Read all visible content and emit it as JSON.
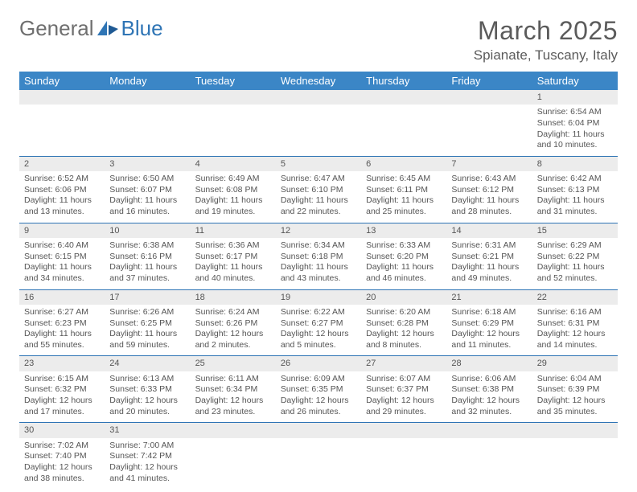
{
  "brand": {
    "part1": "General",
    "part2": "Blue",
    "logo_color_grey": "#6f6f6f",
    "logo_color_blue": "#2f75b5"
  },
  "title": {
    "month": "March 2025",
    "location": "Spianate, Tuscany, Italy"
  },
  "colors": {
    "header_bg": "#3b86c6",
    "header_fg": "#ffffff",
    "daynum_bg": "#ececec",
    "border": "#2e74b5",
    "text": "#555555"
  },
  "typography": {
    "month_fontsize": 32,
    "location_fontsize": 17,
    "header_fontsize": 13,
    "cell_fontsize": 10.5,
    "daynum_fontsize": 11
  },
  "calendar": {
    "type": "table",
    "columns": [
      "Sunday",
      "Monday",
      "Tuesday",
      "Wednesday",
      "Thursday",
      "Friday",
      "Saturday"
    ],
    "weeks": [
      [
        null,
        null,
        null,
        null,
        null,
        null,
        {
          "d": "1",
          "sunrise": "6:54 AM",
          "sunset": "6:04 PM",
          "daylight": "11 hours and 10 minutes."
        }
      ],
      [
        {
          "d": "2",
          "sunrise": "6:52 AM",
          "sunset": "6:06 PM",
          "daylight": "11 hours and 13 minutes."
        },
        {
          "d": "3",
          "sunrise": "6:50 AM",
          "sunset": "6:07 PM",
          "daylight": "11 hours and 16 minutes."
        },
        {
          "d": "4",
          "sunrise": "6:49 AM",
          "sunset": "6:08 PM",
          "daylight": "11 hours and 19 minutes."
        },
        {
          "d": "5",
          "sunrise": "6:47 AM",
          "sunset": "6:10 PM",
          "daylight": "11 hours and 22 minutes."
        },
        {
          "d": "6",
          "sunrise": "6:45 AM",
          "sunset": "6:11 PM",
          "daylight": "11 hours and 25 minutes."
        },
        {
          "d": "7",
          "sunrise": "6:43 AM",
          "sunset": "6:12 PM",
          "daylight": "11 hours and 28 minutes."
        },
        {
          "d": "8",
          "sunrise": "6:42 AM",
          "sunset": "6:13 PM",
          "daylight": "11 hours and 31 minutes."
        }
      ],
      [
        {
          "d": "9",
          "sunrise": "6:40 AM",
          "sunset": "6:15 PM",
          "daylight": "11 hours and 34 minutes."
        },
        {
          "d": "10",
          "sunrise": "6:38 AM",
          "sunset": "6:16 PM",
          "daylight": "11 hours and 37 minutes."
        },
        {
          "d": "11",
          "sunrise": "6:36 AM",
          "sunset": "6:17 PM",
          "daylight": "11 hours and 40 minutes."
        },
        {
          "d": "12",
          "sunrise": "6:34 AM",
          "sunset": "6:18 PM",
          "daylight": "11 hours and 43 minutes."
        },
        {
          "d": "13",
          "sunrise": "6:33 AM",
          "sunset": "6:20 PM",
          "daylight": "11 hours and 46 minutes."
        },
        {
          "d": "14",
          "sunrise": "6:31 AM",
          "sunset": "6:21 PM",
          "daylight": "11 hours and 49 minutes."
        },
        {
          "d": "15",
          "sunrise": "6:29 AM",
          "sunset": "6:22 PM",
          "daylight": "11 hours and 52 minutes."
        }
      ],
      [
        {
          "d": "16",
          "sunrise": "6:27 AM",
          "sunset": "6:23 PM",
          "daylight": "11 hours and 55 minutes."
        },
        {
          "d": "17",
          "sunrise": "6:26 AM",
          "sunset": "6:25 PM",
          "daylight": "11 hours and 59 minutes."
        },
        {
          "d": "18",
          "sunrise": "6:24 AM",
          "sunset": "6:26 PM",
          "daylight": "12 hours and 2 minutes."
        },
        {
          "d": "19",
          "sunrise": "6:22 AM",
          "sunset": "6:27 PM",
          "daylight": "12 hours and 5 minutes."
        },
        {
          "d": "20",
          "sunrise": "6:20 AM",
          "sunset": "6:28 PM",
          "daylight": "12 hours and 8 minutes."
        },
        {
          "d": "21",
          "sunrise": "6:18 AM",
          "sunset": "6:29 PM",
          "daylight": "12 hours and 11 minutes."
        },
        {
          "d": "22",
          "sunrise": "6:16 AM",
          "sunset": "6:31 PM",
          "daylight": "12 hours and 14 minutes."
        }
      ],
      [
        {
          "d": "23",
          "sunrise": "6:15 AM",
          "sunset": "6:32 PM",
          "daylight": "12 hours and 17 minutes."
        },
        {
          "d": "24",
          "sunrise": "6:13 AM",
          "sunset": "6:33 PM",
          "daylight": "12 hours and 20 minutes."
        },
        {
          "d": "25",
          "sunrise": "6:11 AM",
          "sunset": "6:34 PM",
          "daylight": "12 hours and 23 minutes."
        },
        {
          "d": "26",
          "sunrise": "6:09 AM",
          "sunset": "6:35 PM",
          "daylight": "12 hours and 26 minutes."
        },
        {
          "d": "27",
          "sunrise": "6:07 AM",
          "sunset": "6:37 PM",
          "daylight": "12 hours and 29 minutes."
        },
        {
          "d": "28",
          "sunrise": "6:06 AM",
          "sunset": "6:38 PM",
          "daylight": "12 hours and 32 minutes."
        },
        {
          "d": "29",
          "sunrise": "6:04 AM",
          "sunset": "6:39 PM",
          "daylight": "12 hours and 35 minutes."
        }
      ],
      [
        {
          "d": "30",
          "sunrise": "7:02 AM",
          "sunset": "7:40 PM",
          "daylight": "12 hours and 38 minutes."
        },
        {
          "d": "31",
          "sunrise": "7:00 AM",
          "sunset": "7:42 PM",
          "daylight": "12 hours and 41 minutes."
        },
        null,
        null,
        null,
        null,
        null
      ]
    ],
    "labels": {
      "sunrise_prefix": "Sunrise: ",
      "sunset_prefix": "Sunset: ",
      "daylight_prefix": "Daylight: "
    }
  }
}
